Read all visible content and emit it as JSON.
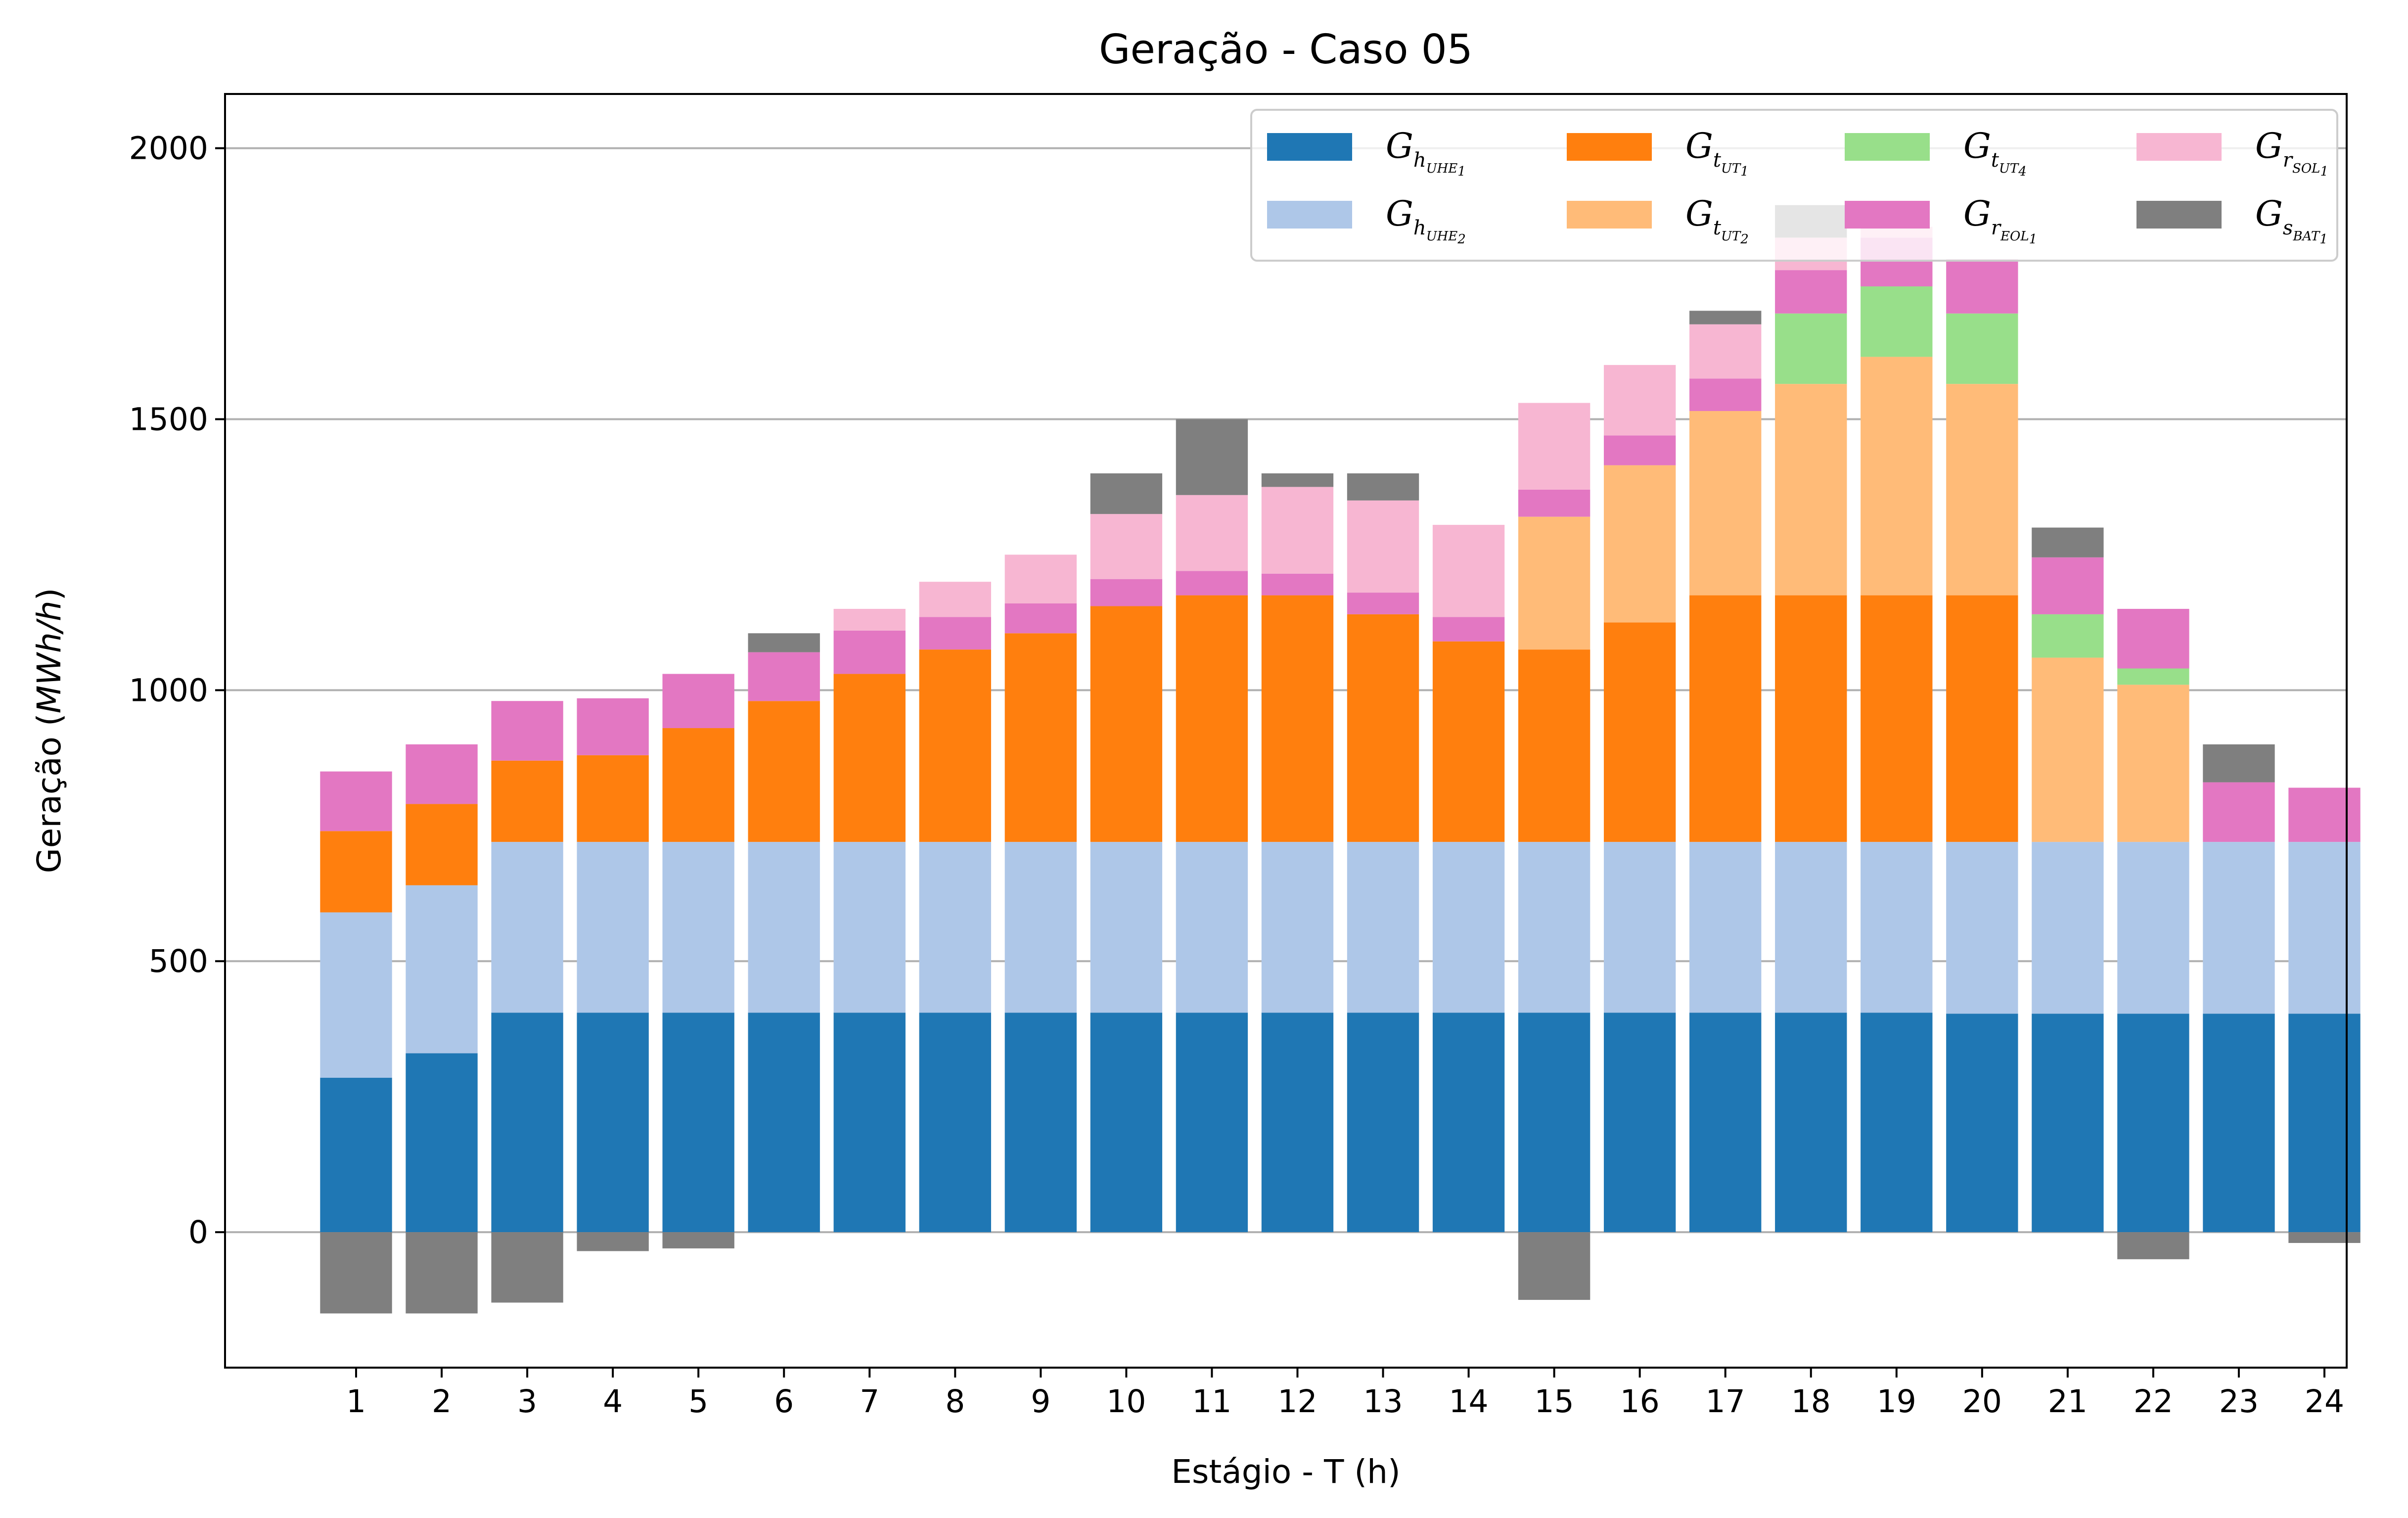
{
  "chart_data": {
    "type": "bar",
    "stacked": true,
    "title": "Geração - Caso 05",
    "xlabel": "Estágio - T (h)",
    "ylabel_main": "Geração (",
    "ylabel_unit": "MWh/h",
    "ylabel_close": ")",
    "ylim": [
      -250,
      2100
    ],
    "yticks": [
      0,
      500,
      1000,
      1500,
      2000
    ],
    "grid": "horizontal",
    "legend_position": "top-right",
    "categories": [
      "1",
      "2",
      "3",
      "4",
      "5",
      "6",
      "7",
      "8",
      "9",
      "10",
      "11",
      "12",
      "13",
      "14",
      "15",
      "16",
      "17",
      "18",
      "19",
      "20",
      "21",
      "22",
      "23",
      "24"
    ],
    "series": [
      {
        "name": "G_h_UHE1",
        "base": "G",
        "sub": "h",
        "subsub": "UHE",
        "idx": "1",
        "color": "#1f77b4",
        "values": [
          285,
          330,
          405,
          405,
          405,
          405,
          405,
          405,
          405,
          405,
          405,
          405,
          405,
          405,
          405,
          405,
          405,
          405,
          405,
          403,
          403,
          403,
          403,
          403
        ]
      },
      {
        "name": "G_h_UHE2",
        "base": "G",
        "sub": "h",
        "subsub": "UHE",
        "idx": "2",
        "color": "#aec7e8",
        "values": [
          305,
          310,
          315,
          315,
          315,
          315,
          315,
          315,
          315,
          315,
          315,
          315,
          315,
          315,
          315,
          315,
          315,
          315,
          315,
          317,
          317,
          317,
          317,
          317
        ]
      },
      {
        "name": "G_t_UT1",
        "base": "G",
        "sub": "t",
        "subsub": "UT",
        "idx": "1",
        "color": "#ff7f0e",
        "values": [
          150,
          150,
          150,
          160,
          210,
          260,
          310,
          355,
          385,
          435,
          455,
          455,
          420,
          370,
          355,
          405,
          455,
          455,
          455,
          455,
          0,
          0,
          0,
          0
        ]
      },
      {
        "name": "G_t_UT2",
        "base": "G",
        "sub": "t",
        "subsub": "UT",
        "idx": "2",
        "color": "#ffbb78",
        "values": [
          0,
          0,
          0,
          0,
          0,
          0,
          0,
          0,
          0,
          0,
          0,
          0,
          0,
          0,
          245,
          290,
          340,
          390,
          440,
          390,
          340,
          290,
          0,
          0
        ]
      },
      {
        "name": "G_t_UT4",
        "base": "G",
        "sub": "t",
        "subsub": "UT",
        "idx": "4",
        "color": "#98df8a",
        "values": [
          0,
          0,
          0,
          0,
          0,
          0,
          0,
          0,
          0,
          0,
          0,
          0,
          0,
          0,
          0,
          0,
          0,
          130,
          130,
          130,
          80,
          30,
          0,
          0
        ]
      },
      {
        "name": "G_r_EOL1",
        "base": "G",
        "sub": "r",
        "subsub": "EOL",
        "idx": "1",
        "color": "#e377c2",
        "values": [
          110,
          110,
          110,
          105,
          100,
          90,
          80,
          60,
          55,
          50,
          45,
          40,
          40,
          45,
          50,
          55,
          60,
          80,
          90,
          100,
          105,
          110,
          110,
          100
        ]
      },
      {
        "name": "G_r_SOL1",
        "base": "G",
        "sub": "r",
        "subsub": "SOL",
        "idx": "1",
        "color": "#f7b6d2",
        "values": [
          0,
          0,
          0,
          0,
          0,
          0,
          40,
          65,
          90,
          120,
          140,
          160,
          170,
          170,
          160,
          130,
          100,
          60,
          20,
          0,
          0,
          0,
          0,
          0
        ]
      },
      {
        "name": "G_s_BAT1",
        "base": "G",
        "sub": "s",
        "subsub": "BAT",
        "idx": "1",
        "color": "#7f7f7f",
        "values": [
          -150,
          -150,
          -130,
          -35,
          -30,
          35,
          0,
          0,
          0,
          75,
          140,
          25,
          50,
          0,
          -125,
          0,
          25,
          60,
          0,
          0,
          55,
          -50,
          70,
          -20
        ]
      }
    ]
  }
}
